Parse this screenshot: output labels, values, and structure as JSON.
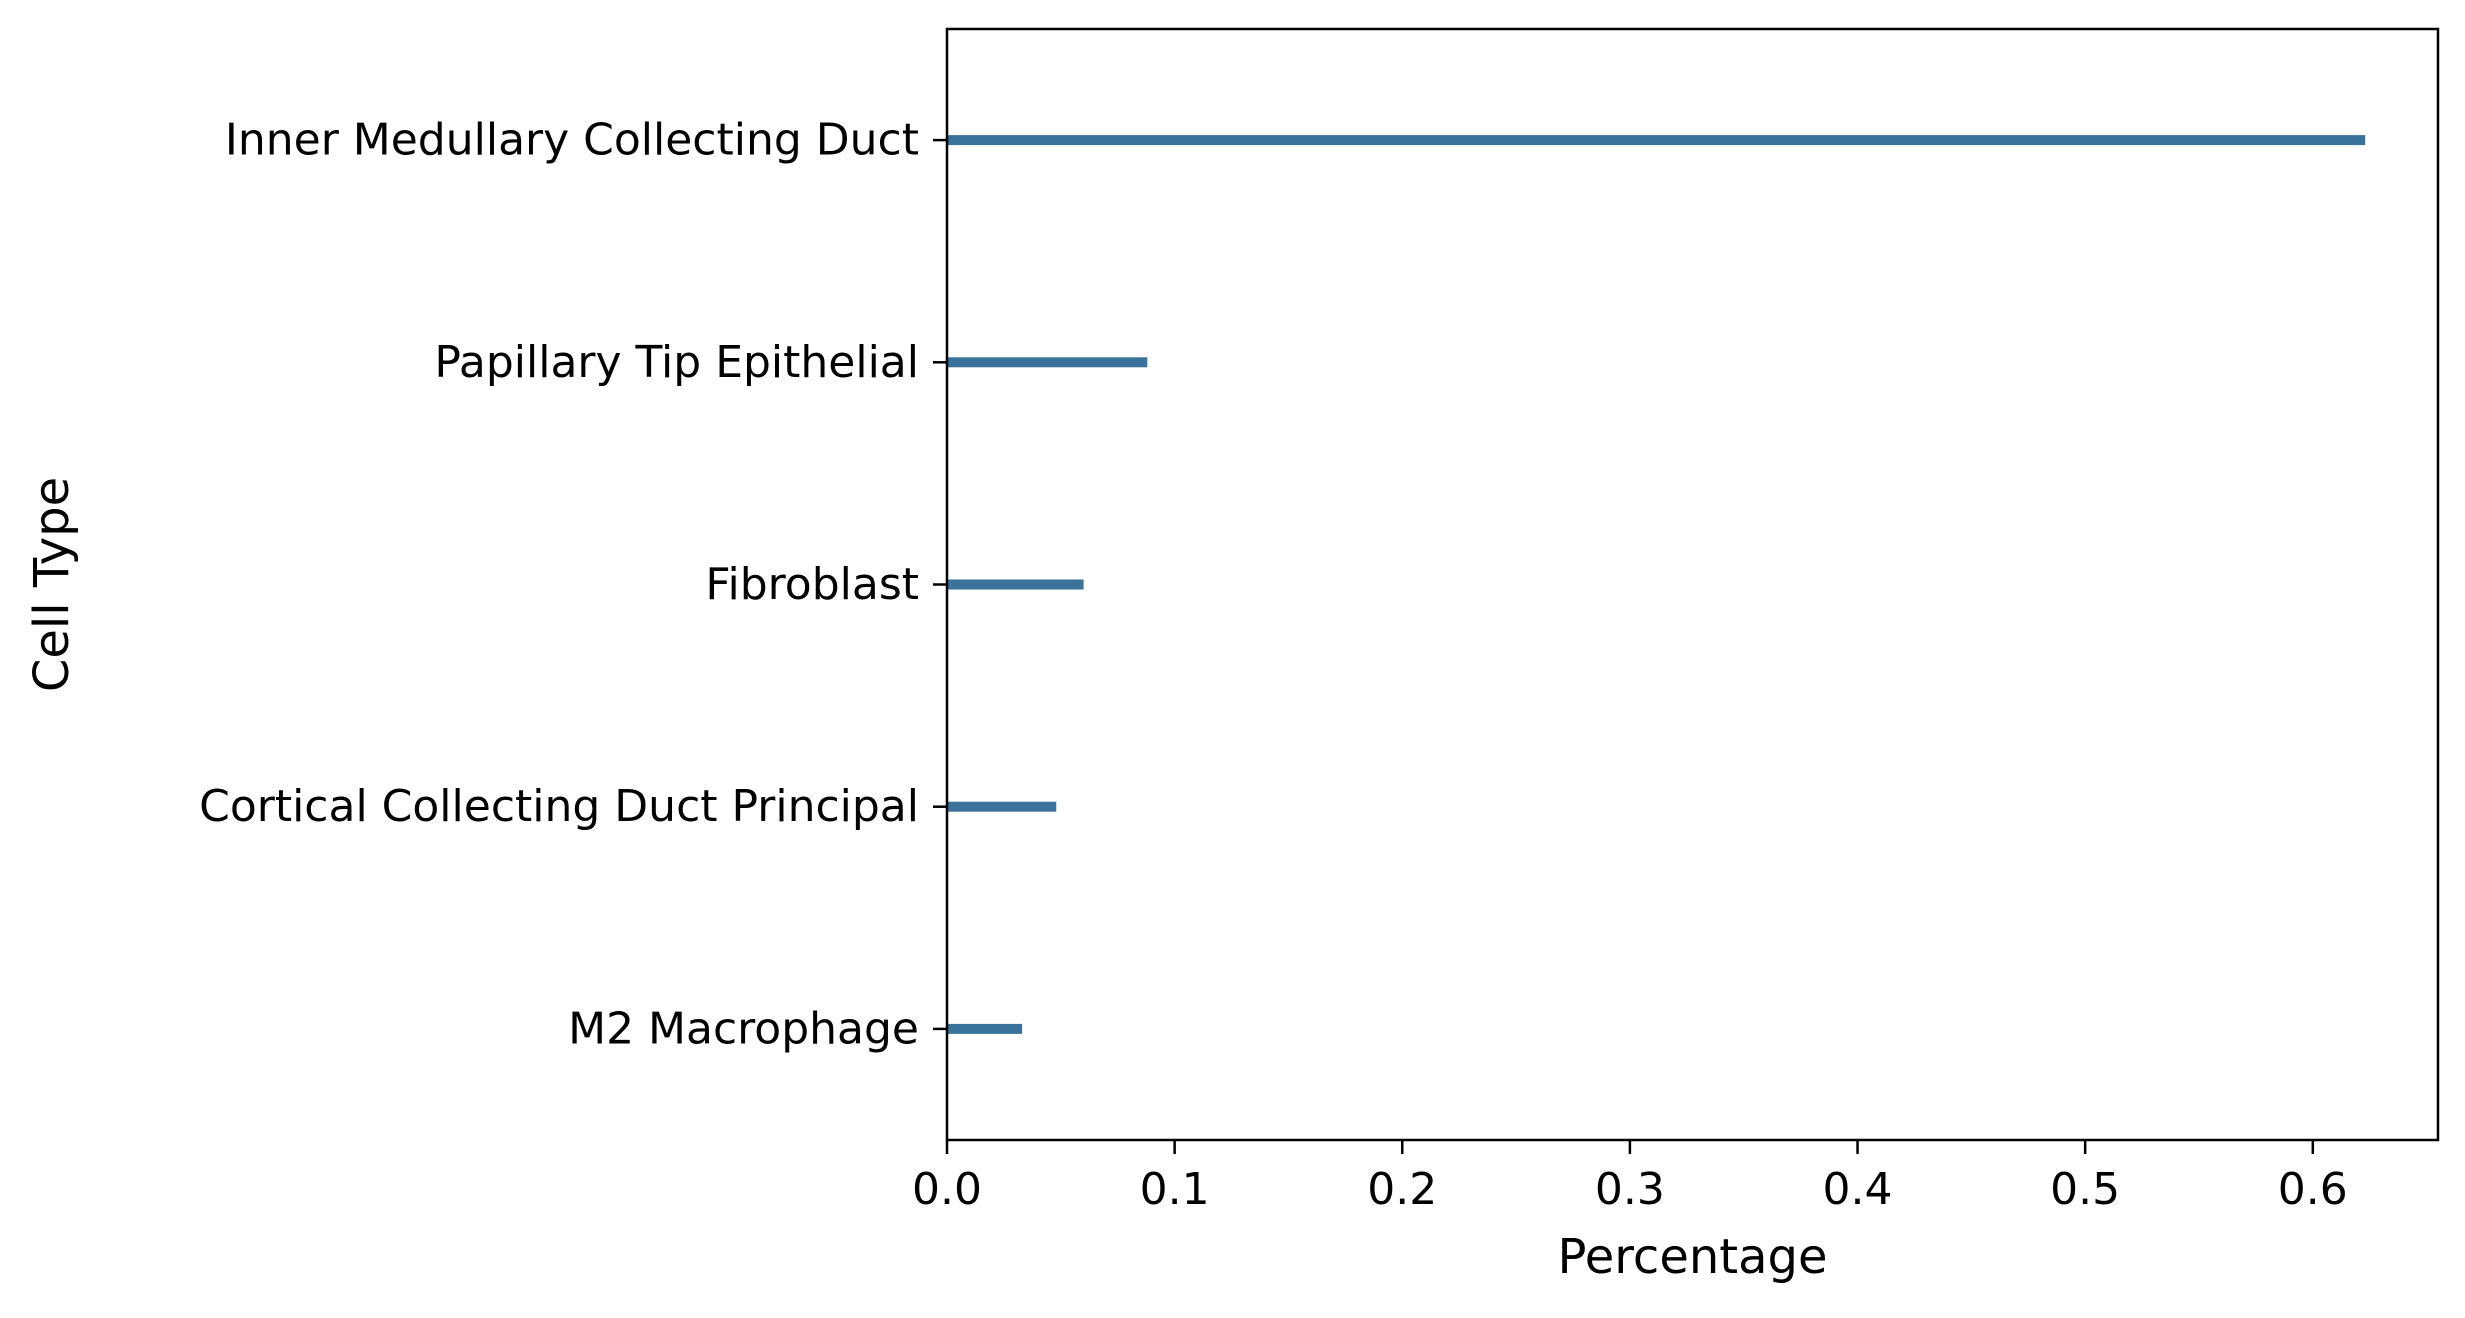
{
  "chart_data": {
    "type": "bar",
    "orientation": "horizontal",
    "categories": [
      "Inner Medullary Collecting Duct",
      "Papillary Tip Epithelial",
      "Fibroblast",
      "Cortical Collecting Duct Principal",
      "M2 Macrophage"
    ],
    "values": [
      0.623,
      0.088,
      0.06,
      0.048,
      0.033
    ],
    "title": "",
    "xlabel": "Percentage",
    "ylabel": "Cell Type",
    "xlim": [
      0,
      0.655
    ],
    "xticks": [
      0.0,
      0.1,
      0.2,
      0.3,
      0.4,
      0.5,
      0.6
    ],
    "xtick_labels": [
      "0.0",
      "0.1",
      "0.2",
      "0.3",
      "0.4",
      "0.5",
      "0.6"
    ],
    "grid": false,
    "legend": false,
    "bar_color": "#3a729c"
  }
}
